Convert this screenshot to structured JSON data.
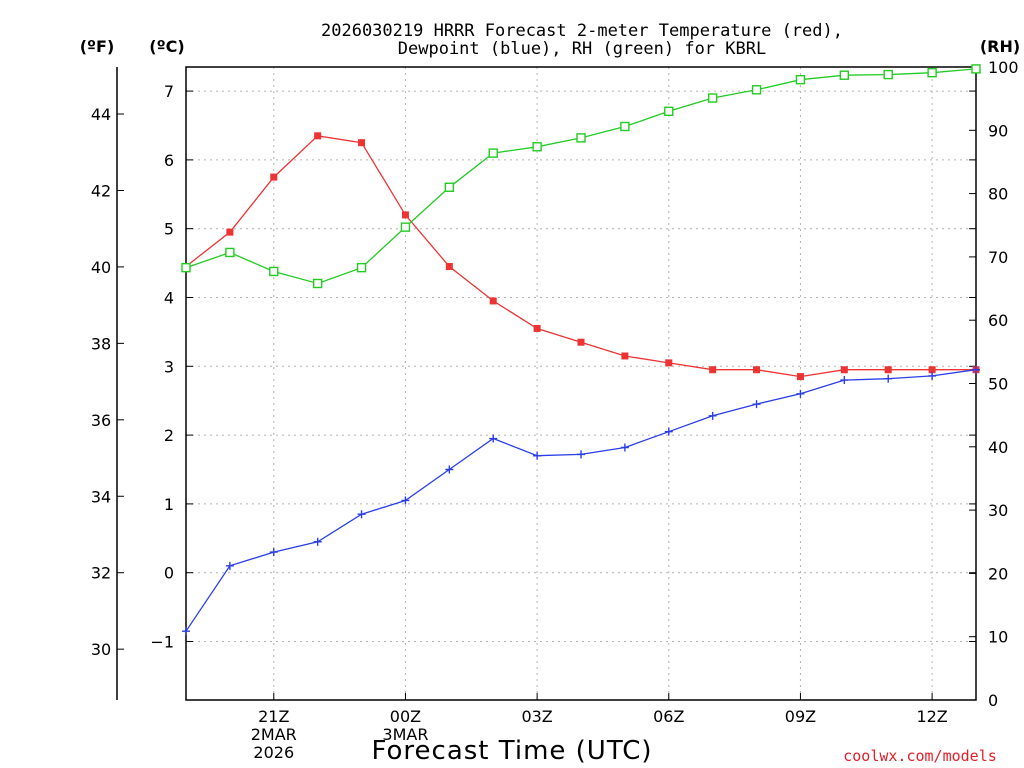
{
  "chart_data": {
    "type": "line",
    "title_line1": "2026030219 HRRR Forecast 2-meter Temperature (red),",
    "title_line2": "Dewpoint (blue), RH (green) for KBRL",
    "left_unit_f": "(ºF)",
    "left_unit_c": "(ºC)",
    "right_unit": "(RH)",
    "xlabel": "Forecast Time (UTC)",
    "credit": "coolwx.com/models",
    "x": [
      "19Z",
      "20Z",
      "21Z",
      "22Z",
      "23Z",
      "00Z",
      "01Z",
      "02Z",
      "03Z",
      "04Z",
      "05Z",
      "06Z",
      "07Z",
      "08Z",
      "09Z",
      "10Z",
      "11Z",
      "12Z",
      "13Z"
    ],
    "xticks": [
      {
        "index": 2,
        "lines": [
          "21Z",
          "2MAR",
          "2026"
        ]
      },
      {
        "index": 5,
        "lines": [
          "00Z",
          "3MAR"
        ]
      },
      {
        "index": 8,
        "lines": [
          "03Z"
        ]
      },
      {
        "index": 11,
        "lines": [
          "06Z"
        ]
      },
      {
        "index": 14,
        "lines": [
          "09Z"
        ]
      },
      {
        "index": 17,
        "lines": [
          "12Z"
        ]
      }
    ],
    "ylim_c": [
      -1.85,
      7.35
    ],
    "ylim_rh": [
      0,
      100
    ],
    "yticks_c": [
      -1,
      0,
      1,
      2,
      3,
      4,
      5,
      6,
      7
    ],
    "yticks_f": [
      30,
      32,
      34,
      36,
      38,
      40,
      42,
      44
    ],
    "yticks_rh": [
      0,
      10,
      20,
      30,
      40,
      50,
      60,
      70,
      80,
      90,
      100
    ],
    "grid": true,
    "series": [
      {
        "name": "Temperature",
        "axis": "c",
        "color": "#ee3333",
        "marker": "filled-square",
        "values": [
          4.45,
          4.95,
          5.75,
          6.35,
          6.25,
          5.2,
          4.45,
          3.95,
          3.55,
          3.35,
          3.15,
          3.05,
          2.95,
          2.95,
          2.85,
          2.95,
          2.95,
          2.95,
          2.95
        ]
      },
      {
        "name": "Dewpoint",
        "axis": "c",
        "color": "#2a3ee8",
        "marker": "plus",
        "values": [
          -0.85,
          0.1,
          0.3,
          0.45,
          0.85,
          1.05,
          1.5,
          1.95,
          1.7,
          1.72,
          1.82,
          2.05,
          2.28,
          2.45,
          2.6,
          2.8,
          2.82,
          2.86,
          2.95
        ]
      },
      {
        "name": "RH",
        "axis": "rh",
        "color": "#22cc22",
        "marker": "open-square",
        "values": [
          68.3,
          70.7,
          67.7,
          65.8,
          68.3,
          74.7,
          81,
          86.4,
          87.4,
          88.8,
          90.6,
          93,
          95.1,
          96.4,
          98,
          98.7,
          98.8,
          99.1,
          99.7
        ]
      }
    ]
  }
}
